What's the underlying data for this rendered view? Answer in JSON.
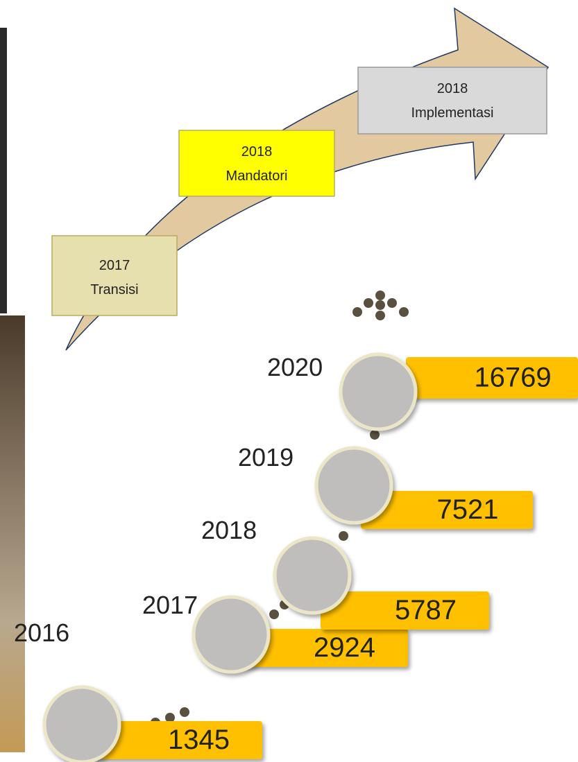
{
  "phases": [
    {
      "year": "2017",
      "label": "Transisi"
    },
    {
      "year": "2018",
      "label": "Mandatori"
    },
    {
      "year": "2018",
      "label": "Implementasi"
    }
  ],
  "timeline": [
    {
      "year": "2016",
      "value": 1345
    },
    {
      "year": "2017",
      "value": 2924
    },
    {
      "year": "2018",
      "value": 5787
    },
    {
      "year": "2019",
      "value": 7521
    },
    {
      "year": "2020",
      "value": 16769
    }
  ]
}
